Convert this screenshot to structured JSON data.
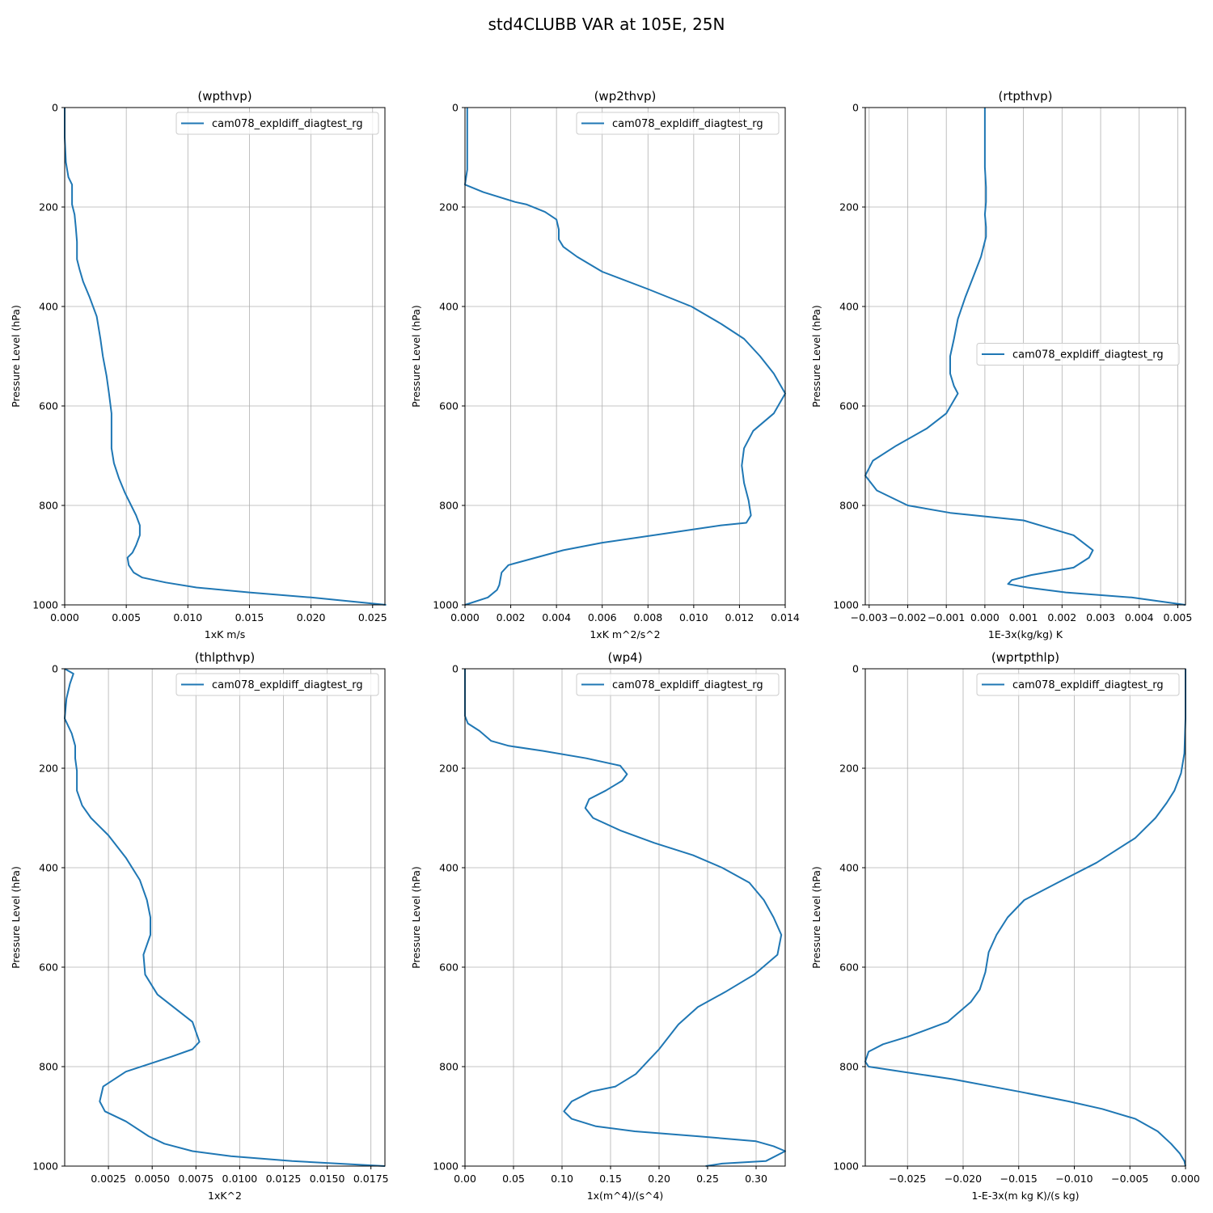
{
  "figure": {
    "title": "std4CLUBB VAR at 105E, 25N",
    "series_color": "#1f77b4"
  },
  "chart_data": [
    {
      "type": "line",
      "title": "(wpthvp)",
      "xlabel": "1xK m/s",
      "ylabel": "Pressure Level (hPa)",
      "xlim": [
        0,
        0.026
      ],
      "ylim": [
        1000,
        0
      ],
      "y_inverted": true,
      "grid": true,
      "legend_position": "upper right",
      "xticks": [
        0,
        0.005,
        0.01,
        0.015,
        0.02,
        0.025
      ],
      "xtick_labels": [
        "0.000",
        "0.005",
        "0.010",
        "0.015",
        "0.020",
        "0.025"
      ],
      "yticks": [
        0,
        200,
        400,
        600,
        800,
        1000
      ],
      "ytick_labels": [
        "0",
        "200",
        "400",
        "600",
        "800",
        "1000"
      ],
      "series": [
        {
          "name": "cam078_expldiff_diagtest_rg",
          "x": [
            0,
            0,
            0.0001,
            0.0003,
            0.0006,
            0.0006,
            0.0006,
            0.0008,
            0.0009,
            0.001,
            0.001,
            0.0012,
            0.0015,
            0.002,
            0.0026,
            0.0029,
            0.0031,
            0.0034,
            0.0036,
            0.0038,
            0.0038,
            0.0038,
            0.004,
            0.0044,
            0.0049,
            0.0054,
            0.0058,
            0.0061,
            0.0061,
            0.0058,
            0.0055,
            0.0051,
            0.0052,
            0.0056,
            0.0063,
            0.0082,
            0.0107,
            0.015,
            0.02,
            0.0261
          ],
          "y": [
            0,
            60,
            110,
            140,
            155,
            170,
            195,
            215,
            240,
            270,
            305,
            325,
            350,
            380,
            420,
            465,
            500,
            540,
            575,
            615,
            650,
            685,
            715,
            745,
            775,
            800,
            820,
            840,
            860,
            880,
            895,
            905,
            920,
            935,
            945,
            955,
            965,
            975,
            985,
            1000
          ]
        }
      ]
    },
    {
      "type": "line",
      "title": "(wp2thvp)",
      "xlabel": "1xK m^2/s^2",
      "ylabel": "Pressure Level (hPa)",
      "xlim": [
        0,
        0.014
      ],
      "ylim": [
        1000,
        0
      ],
      "y_inverted": true,
      "grid": true,
      "legend_position": "upper right",
      "xticks": [
        0,
        0.002,
        0.004,
        0.006,
        0.008,
        0.01,
        0.012,
        0.014
      ],
      "xtick_labels": [
        "0.000",
        "0.002",
        "0.004",
        "0.006",
        "0.008",
        "0.010",
        "0.012",
        "0.014"
      ],
      "yticks": [
        0,
        200,
        400,
        600,
        800,
        1000
      ],
      "ytick_labels": [
        "0",
        "200",
        "400",
        "600",
        "800",
        "1000"
      ],
      "series": [
        {
          "name": "cam078_expldiff_diagtest_rg",
          "x": [
            0.0001,
            0.0001,
            0.0001,
            0.0,
            0.0008,
            0.0022,
            0.0027,
            0.0035,
            0.004,
            0.0041,
            0.0041,
            0.0043,
            0.0049,
            0.006,
            0.008,
            0.0099,
            0.0112,
            0.0122,
            0.0129,
            0.0135,
            0.014,
            0.0135,
            0.0126,
            0.0122,
            0.0121,
            0.0122,
            0.0124,
            0.0125,
            0.0123,
            0.0112,
            0.009,
            0.006,
            0.0043,
            0.0027,
            0.0019,
            0.0016,
            0.0015,
            0.0014,
            0.001,
            0.0
          ],
          "y": [
            0,
            80,
            125,
            155,
            170,
            190,
            195,
            210,
            225,
            245,
            265,
            280,
            300,
            330,
            365,
            400,
            435,
            465,
            500,
            535,
            575,
            615,
            650,
            685,
            720,
            755,
            790,
            820,
            835,
            840,
            855,
            875,
            890,
            910,
            920,
            935,
            960,
            970,
            985,
            1000
          ]
        }
      ]
    },
    {
      "type": "line",
      "title": "(rtpthvp)",
      "xlabel": "1E-3x(kg/kg) K",
      "ylabel": "Pressure Level (hPa)",
      "xlim": [
        -0.0031,
        0.0052
      ],
      "ylim": [
        1000,
        0
      ],
      "y_inverted": true,
      "grid": true,
      "legend_position": "center right",
      "xticks": [
        -0.003,
        -0.002,
        -0.001,
        0,
        0.001,
        0.002,
        0.003,
        0.004,
        0.005
      ],
      "xtick_labels": [
        "−0.003",
        "−0.002",
        "−0.001",
        "0.000",
        "0.001",
        "0.002",
        "0.003",
        "0.004",
        "0.005"
      ],
      "yticks": [
        0,
        200,
        400,
        600,
        800,
        1000
      ],
      "ytick_labels": [
        "0",
        "200",
        "400",
        "600",
        "800",
        "1000"
      ],
      "series": [
        {
          "name": "cam078_expldiff_diagtest_rg",
          "x": [
            0.0,
            0.0,
            0.0,
            3e-05,
            3e-05,
            0.0,
            3e-05,
            3e-05,
            -0.0001,
            -0.0003,
            -0.0005,
            -0.0007,
            -0.0008,
            -0.0009,
            -0.0009,
            -0.0008,
            -0.0007,
            -0.001,
            -0.0015,
            -0.0023,
            -0.0029,
            -0.0031,
            -0.0028,
            -0.002,
            -0.0009,
            0.001,
            0.0023,
            0.0028,
            0.0027,
            0.0023,
            0.0012,
            0.0007,
            0.0006,
            0.0011,
            0.0021,
            0.0038,
            0.0052
          ],
          "y": [
            0,
            60,
            120,
            160,
            190,
            215,
            240,
            260,
            300,
            340,
            380,
            425,
            465,
            500,
            535,
            560,
            575,
            615,
            645,
            680,
            710,
            740,
            770,
            800,
            815,
            830,
            860,
            890,
            905,
            925,
            940,
            950,
            958,
            965,
            975,
            985,
            1000
          ]
        }
      ]
    },
    {
      "type": "line",
      "title": "(thlpthvp)",
      "xlabel": "1xK^2",
      "ylabel": "Pressure Level (hPa)",
      "xlim": [
        0,
        0.0183
      ],
      "ylim": [
        1000,
        0
      ],
      "y_inverted": true,
      "grid": true,
      "legend_position": "upper right",
      "xticks": [
        0.0025,
        0.005,
        0.0075,
        0.01,
        0.0125,
        0.015,
        0.0175
      ],
      "xtick_labels": [
        "0.0025",
        "0.0050",
        "0.0075",
        "0.0100",
        "0.0125",
        "0.0150",
        "0.0175"
      ],
      "yticks": [
        0,
        200,
        400,
        600,
        800,
        1000
      ],
      "ytick_labels": [
        "0",
        "200",
        "400",
        "600",
        "800",
        "1000"
      ],
      "series": [
        {
          "name": "cam078_expldiff_diagtest_rg",
          "x": [
            0.0,
            0.0005,
            0.0003,
            0.0001,
            0.0,
            0.0004,
            0.0006,
            0.0006,
            0.0007,
            0.0007,
            0.001,
            0.0015,
            0.0025,
            0.0035,
            0.0043,
            0.0047,
            0.0049,
            0.0049,
            0.0045,
            0.0046,
            0.0053,
            0.0073,
            0.0077,
            0.0073,
            0.0061,
            0.0035,
            0.0022,
            0.002,
            0.0023,
            0.0035,
            0.0048,
            0.0057,
            0.0073,
            0.0095,
            0.013,
            0.0183
          ],
          "y": [
            0,
            10,
            30,
            60,
            100,
            130,
            155,
            180,
            205,
            245,
            275,
            300,
            335,
            380,
            425,
            465,
            500,
            535,
            575,
            615,
            655,
            710,
            750,
            765,
            780,
            810,
            840,
            870,
            890,
            910,
            940,
            955,
            970,
            980,
            990,
            1000
          ]
        }
      ]
    },
    {
      "type": "line",
      "title": "(wp4)",
      "xlabel": "1x(m^4)/(s^4)",
      "ylabel": "Pressure Level (hPa)",
      "xlim": [
        0,
        0.33
      ],
      "ylim": [
        1000,
        0
      ],
      "y_inverted": true,
      "grid": true,
      "legend_position": "upper right",
      "xticks": [
        0,
        0.05,
        0.1,
        0.15,
        0.2,
        0.25,
        0.3
      ],
      "xtick_labels": [
        "0.00",
        "0.05",
        "0.10",
        "0.15",
        "0.20",
        "0.25",
        "0.30"
      ],
      "yticks": [
        0,
        200,
        400,
        600,
        800,
        1000
      ],
      "ytick_labels": [
        "0",
        "200",
        "400",
        "600",
        "800",
        "1000"
      ],
      "series": [
        {
          "name": "cam078_expldiff_diagtest_rg",
          "x": [
            0.0,
            0.0,
            0.003,
            0.015,
            0.027,
            0.045,
            0.08,
            0.125,
            0.16,
            0.167,
            0.162,
            0.145,
            0.128,
            0.124,
            0.132,
            0.16,
            0.195,
            0.235,
            0.265,
            0.293,
            0.308,
            0.318,
            0.326,
            0.322,
            0.298,
            0.268,
            0.24,
            0.22,
            0.2,
            0.188,
            0.176,
            0.155,
            0.13,
            0.11,
            0.102,
            0.11,
            0.135,
            0.175,
            0.24,
            0.3,
            0.318,
            0.33,
            0.31,
            0.265,
            0.248
          ],
          "y": [
            0,
            95,
            110,
            125,
            145,
            155,
            165,
            180,
            195,
            212,
            225,
            245,
            262,
            280,
            300,
            325,
            350,
            375,
            400,
            430,
            465,
            500,
            535,
            575,
            615,
            650,
            680,
            715,
            765,
            790,
            815,
            840,
            850,
            870,
            890,
            905,
            920,
            930,
            940,
            950,
            960,
            970,
            990,
            995,
            1000
          ]
        }
      ]
    },
    {
      "type": "line",
      "title": "(wprtpthlp)",
      "xlabel": "1-E-3x(m kg K)/(s kg)",
      "ylabel": "Pressure Level (hPa)",
      "xlim": [
        -0.0288,
        0.0
      ],
      "ylim": [
        1000,
        0
      ],
      "y_inverted": true,
      "grid": true,
      "legend_position": "upper right",
      "xticks": [
        -0.025,
        -0.02,
        -0.015,
        -0.01,
        -0.005,
        0
      ],
      "xtick_labels": [
        "−0.025",
        "−0.020",
        "−0.015",
        "−0.010",
        "−0.005",
        "0.000"
      ],
      "yticks": [
        0,
        200,
        400,
        600,
        800,
        1000
      ],
      "ytick_labels": [
        "0",
        "200",
        "400",
        "600",
        "800",
        "1000"
      ],
      "series": [
        {
          "name": "cam078_expldiff_diagtest_rg",
          "x": [
            0.0,
            0.0,
            -0.0001,
            -0.0004,
            -0.001,
            -0.0017,
            -0.0027,
            -0.0045,
            -0.008,
            -0.0115,
            -0.0145,
            -0.016,
            -0.017,
            -0.0177,
            -0.018,
            -0.0185,
            -0.0193,
            -0.0214,
            -0.025,
            -0.0272,
            -0.0285,
            -0.0288,
            -0.0285,
            -0.0255,
            -0.021,
            -0.015,
            -0.0105,
            -0.0075,
            -0.0045,
            -0.0025,
            -0.0013,
            -0.0005,
            -0.0001,
            0.0
          ],
          "y": [
            0,
            100,
            170,
            210,
            245,
            270,
            300,
            340,
            390,
            430,
            465,
            500,
            535,
            570,
            610,
            645,
            670,
            710,
            740,
            755,
            770,
            790,
            800,
            810,
            825,
            850,
            870,
            885,
            905,
            930,
            955,
            975,
            990,
            1000
          ]
        }
      ]
    }
  ]
}
